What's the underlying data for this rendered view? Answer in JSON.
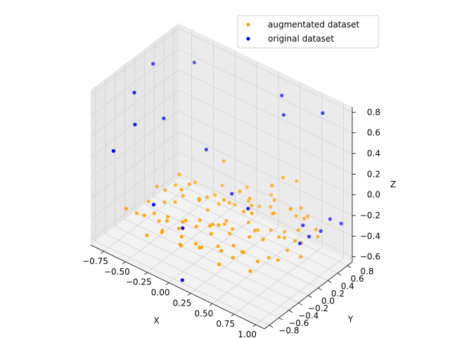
{
  "chart_data": {
    "type": "scatter",
    "projection": "3d",
    "xlabel": "X",
    "ylabel": "Y",
    "zlabel": "Z",
    "xlim": [
      -0.9,
      1.1
    ],
    "ylim": [
      -0.9,
      0.9
    ],
    "zlim": [
      -0.65,
      0.85
    ],
    "x_ticks": [
      "−0.75",
      "−0.50",
      "−0.25",
      "0.00",
      "0.25",
      "0.50",
      "0.75",
      "1.00"
    ],
    "y_ticks": [
      "−0.8",
      "−0.6",
      "−0.4",
      "−0.2",
      "0.0",
      "0.2",
      "0.4",
      "0.6",
      "0.8"
    ],
    "z_ticks": [
      "−0.6",
      "−0.4",
      "−0.2",
      "0.0",
      "0.2",
      "0.4",
      "0.6",
      "0.8"
    ],
    "grid": true,
    "legend_position": "top-right",
    "series": [
      {
        "name": "augmentated dataset",
        "color": "#ffa500",
        "points": [
          [
            -0.7,
            -0.53,
            -0.35
          ],
          [
            -0.52,
            -0.48,
            -0.36
          ],
          [
            -0.45,
            -0.4,
            -0.34
          ],
          [
            -0.35,
            -0.3,
            -0.37
          ],
          [
            -0.28,
            -0.44,
            -0.33
          ],
          [
            -0.2,
            -0.2,
            -0.38
          ],
          [
            -0.15,
            -0.35,
            -0.32
          ],
          [
            -0.12,
            -0.05,
            -0.4
          ],
          [
            -0.05,
            -0.25,
            -0.36
          ],
          [
            0.0,
            0.0,
            -0.41
          ],
          [
            0.05,
            -0.15,
            -0.35
          ],
          [
            0.1,
            0.1,
            -0.37
          ],
          [
            0.15,
            -0.3,
            -0.33
          ],
          [
            0.2,
            0.05,
            -0.39
          ],
          [
            0.25,
            -0.1,
            -0.36
          ],
          [
            0.3,
            0.2,
            -0.34
          ],
          [
            0.35,
            -0.2,
            -0.4
          ],
          [
            0.4,
            0.15,
            -0.36
          ],
          [
            0.45,
            -0.05,
            -0.33
          ],
          [
            0.5,
            0.3,
            -0.37
          ],
          [
            0.55,
            0.05,
            -0.35
          ],
          [
            0.6,
            0.4,
            -0.38
          ],
          [
            0.65,
            0.2,
            -0.34
          ],
          [
            0.7,
            0.5,
            -0.36
          ],
          [
            0.75,
            0.35,
            -0.39
          ],
          [
            -0.4,
            0.1,
            -0.33
          ],
          [
            -0.3,
            0.25,
            -0.37
          ],
          [
            -0.2,
            0.4,
            -0.35
          ],
          [
            -0.1,
            0.3,
            -0.36
          ],
          [
            0.0,
            0.45,
            -0.38
          ],
          [
            0.1,
            0.55,
            -0.34
          ],
          [
            0.2,
            0.6,
            -0.37
          ],
          [
            0.3,
            0.65,
            -0.35
          ],
          [
            -0.5,
            -0.1,
            -0.36
          ],
          [
            -0.6,
            -0.25,
            -0.34
          ],
          [
            -0.25,
            -0.6,
            -0.37
          ],
          [
            -0.05,
            -0.55,
            -0.35
          ],
          [
            0.15,
            -0.5,
            -0.39
          ],
          [
            0.35,
            -0.45,
            -0.36
          ],
          [
            0.55,
            -0.35,
            -0.33
          ],
          [
            0.8,
            0.1,
            -0.37
          ],
          [
            0.85,
            0.3,
            -0.35
          ],
          [
            0.9,
            0.55,
            -0.36
          ],
          [
            -0.35,
            -0.15,
            -0.28
          ],
          [
            -0.15,
            0.15,
            -0.26
          ],
          [
            0.05,
            0.25,
            -0.27
          ],
          [
            0.25,
            0.35,
            -0.25
          ],
          [
            0.45,
            0.45,
            -0.28
          ],
          [
            0.65,
            0.55,
            -0.26
          ],
          [
            -0.45,
            -0.3,
            -0.45
          ],
          [
            -0.25,
            -0.25,
            -0.46
          ],
          [
            0.0,
            -0.35,
            -0.47
          ],
          [
            0.2,
            -0.25,
            -0.45
          ],
          [
            0.4,
            -0.3,
            -0.46
          ],
          [
            0.6,
            -0.15,
            -0.47
          ],
          [
            0.75,
            0.0,
            -0.45
          ],
          [
            -0.55,
            0.0,
            -0.3
          ],
          [
            -0.4,
            0.35,
            -0.29
          ],
          [
            -0.2,
            0.55,
            -0.31
          ],
          [
            0.0,
            0.7,
            -0.3
          ],
          [
            0.25,
            0.75,
            -0.29
          ],
          [
            0.5,
            0.7,
            -0.31
          ],
          [
            0.7,
            0.7,
            -0.3
          ],
          [
            -0.65,
            -0.4,
            -0.42
          ],
          [
            -0.3,
            -0.5,
            -0.41
          ],
          [
            0.1,
            -0.45,
            -0.43
          ],
          [
            0.45,
            -0.2,
            -0.42
          ],
          [
            0.7,
            -0.1,
            -0.41
          ],
          [
            0.9,
            0.2,
            -0.43
          ],
          [
            -0.1,
            -0.1,
            -0.18
          ],
          [
            0.1,
            0.05,
            -0.15
          ],
          [
            0.3,
            0.1,
            -0.2
          ],
          [
            0.55,
            0.25,
            -0.17
          ],
          [
            0.8,
            0.45,
            -0.19
          ],
          [
            -0.3,
            0.05,
            -0.16
          ],
          [
            -0.5,
            0.2,
            -0.2
          ],
          [
            0.2,
            0.4,
            -0.22
          ],
          [
            0.4,
            0.55,
            -0.21
          ],
          [
            -0.15,
            -0.4,
            -0.52
          ],
          [
            0.3,
            -0.4,
            -0.53
          ],
          [
            0.6,
            -0.3,
            -0.51
          ],
          [
            -0.45,
            -0.55,
            -0.5
          ],
          [
            0.05,
            0.15,
            -0.44
          ],
          [
            0.35,
            0.3,
            -0.43
          ],
          [
            0.6,
            0.4,
            -0.44
          ],
          [
            -0.2,
            0.25,
            -0.44
          ],
          [
            0.85,
            0.6,
            -0.33
          ],
          [
            -0.6,
            0.3,
            -0.38
          ],
          [
            -0.7,
            0.1,
            -0.36
          ],
          [
            0.0,
            -0.65,
            -0.38
          ],
          [
            0.65,
            0.65,
            -0.22
          ],
          [
            0.5,
            0.55,
            0.05
          ],
          [
            0.6,
            0.65,
            0.02
          ],
          [
            0.4,
            0.5,
            -0.05
          ],
          [
            -0.1,
            0.4,
            0.02
          ],
          [
            0.2,
            0.2,
            -0.08
          ],
          [
            0.7,
            0.35,
            -0.1
          ],
          [
            -0.25,
            -0.2,
            -0.1
          ],
          [
            0.45,
            0.0,
            -0.12
          ],
          [
            0.15,
            -0.15,
            -0.3
          ]
        ]
      },
      {
        "name": "original dataset",
        "color": "#0000ff",
        "points": [
          [
            -0.78,
            -0.22,
            0.63
          ],
          [
            -0.8,
            0.2,
            0.75
          ],
          [
            -0.7,
            -0.35,
            0.4
          ],
          [
            -0.65,
            0.15,
            0.3
          ],
          [
            -0.55,
            0.6,
            0.72
          ],
          [
            -0.75,
            -0.7,
            0.25
          ],
          [
            -0.4,
            -0.5,
            -0.2
          ],
          [
            -0.3,
            0.4,
            0.05
          ],
          [
            0.1,
            -0.8,
            -0.62
          ],
          [
            -0.15,
            -0.35,
            -0.38
          ],
          [
            0.4,
            0.7,
            0.75
          ],
          [
            0.45,
            0.65,
            0.6
          ],
          [
            0.9,
            0.65,
            0.8
          ],
          [
            0.35,
            0.1,
            -0.15
          ],
          [
            0.7,
            0.6,
            -0.35
          ],
          [
            0.8,
            0.55,
            -0.4
          ],
          [
            0.85,
            0.7,
            -0.38
          ],
          [
            0.9,
            0.8,
            -0.28
          ],
          [
            0.75,
            0.45,
            -0.45
          ],
          [
            1.0,
            0.85,
            -0.3
          ],
          [
            0.05,
            0.3,
            -0.2
          ]
        ]
      }
    ]
  }
}
